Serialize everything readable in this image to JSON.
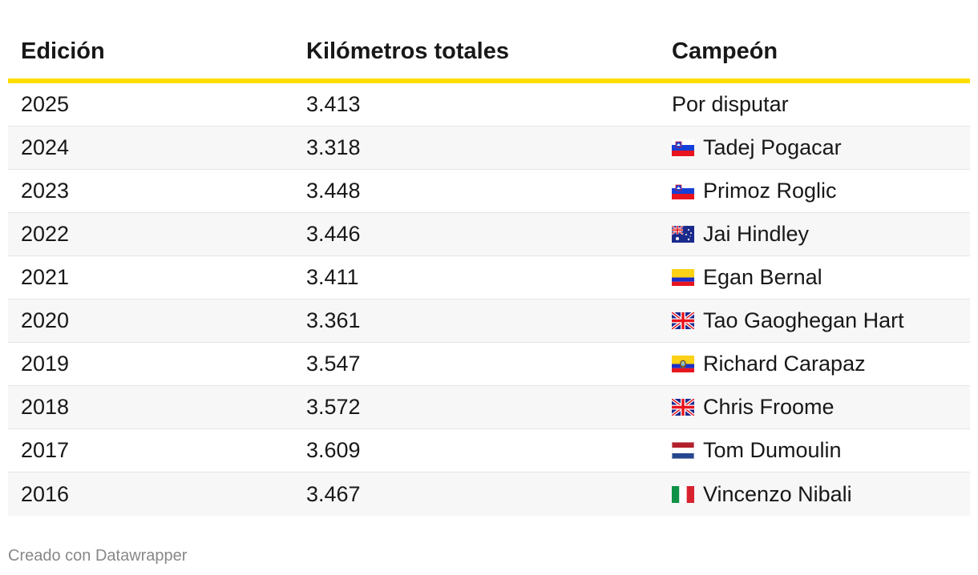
{
  "table": {
    "headers": [
      "Edición",
      "Kilómetros totales",
      "Campeón"
    ],
    "rows": [
      {
        "edicion": "2025",
        "km": "3.413",
        "campeon": "Por disputar",
        "flag": ""
      },
      {
        "edicion": "2024",
        "km": "3.318",
        "campeon": "Tadej Pogacar",
        "flag": "slovenia-flag-icon"
      },
      {
        "edicion": "2023",
        "km": "3.448",
        "campeon": "Primoz Roglic",
        "flag": "slovenia-flag-icon"
      },
      {
        "edicion": "2022",
        "km": "3.446",
        "campeon": "Jai Hindley",
        "flag": "australia-flag-icon"
      },
      {
        "edicion": "2021",
        "km": "3.411",
        "campeon": "Egan Bernal",
        "flag": "colombia-flag-icon"
      },
      {
        "edicion": "2020",
        "km": "3.361",
        "campeon": "Tao Gaoghegan Hart",
        "flag": "uk-flag-icon"
      },
      {
        "edicion": "2019",
        "km": "3.547",
        "campeon": "Richard Carapaz",
        "flag": "ecuador-flag-icon"
      },
      {
        "edicion": "2018",
        "km": "3.572",
        "campeon": "Chris Froome",
        "flag": "uk-flag-icon"
      },
      {
        "edicion": "2017",
        "km": "3.609",
        "campeon": "Tom Dumoulin",
        "flag": "netherlands-flag-icon"
      },
      {
        "edicion": "2016",
        "km": "3.467",
        "campeon": "Vincenzo Nibali",
        "flag": "italy-flag-icon"
      }
    ]
  },
  "footer": {
    "credit": "Creado con Datawrapper"
  },
  "colors": {
    "header_rule": "#ffdd00",
    "row_alt": "#f7f7f7",
    "footer_text": "#888888"
  }
}
